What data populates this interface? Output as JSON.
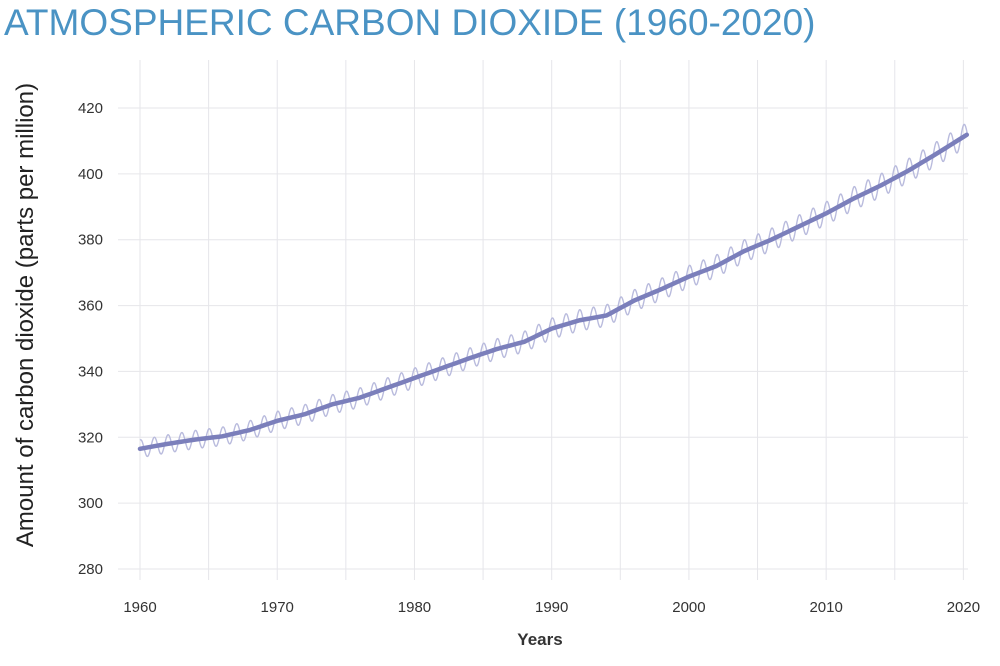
{
  "title": "ATMOSPHERIC CARBON DIOXIDE (1960-2020)",
  "chart_data": {
    "type": "line",
    "title": "ATMOSPHERIC CARBON DIOXIDE (1960-2020)",
    "xlabel": "Years",
    "ylabel": "Amount of carbon dioxide (parts per million)",
    "xlim": [
      1960,
      2020.3
    ],
    "ylim": [
      280,
      430
    ],
    "x_ticks": [
      "1960",
      "1970",
      "1980",
      "1990",
      "2000",
      "2010",
      "2020"
    ],
    "y_ticks": [
      "280",
      "300",
      "320",
      "340",
      "360",
      "380",
      "400",
      "420"
    ],
    "grid": true,
    "series": [
      {
        "color": "#7b7fbb",
        "style": "trend",
        "x": [
          1960,
          1962,
          1964,
          1966,
          1968,
          1970,
          1972,
          1974,
          1976,
          1978,
          1980,
          1982,
          1984,
          1986,
          1988,
          1990,
          1992,
          1994,
          1996,
          1998,
          2000,
          2002,
          2004,
          2006,
          2008,
          2010,
          2012,
          2014,
          2016,
          2018,
          2020.3
        ],
        "values": [
          316.5,
          318.0,
          319.3,
          320.3,
          322.2,
          325.0,
          327.0,
          330.0,
          332.0,
          335.0,
          338.0,
          341.0,
          344.0,
          346.8,
          349.0,
          353.0,
          355.5,
          357.0,
          361.5,
          365.0,
          368.8,
          372.0,
          376.5,
          380.0,
          384.0,
          388.0,
          392.5,
          396.5,
          401.0,
          406.0,
          412.0
        ]
      },
      {
        "color": "#b9bbdd",
        "style": "monthly",
        "seasonal_amplitude": 3.2
      }
    ]
  }
}
